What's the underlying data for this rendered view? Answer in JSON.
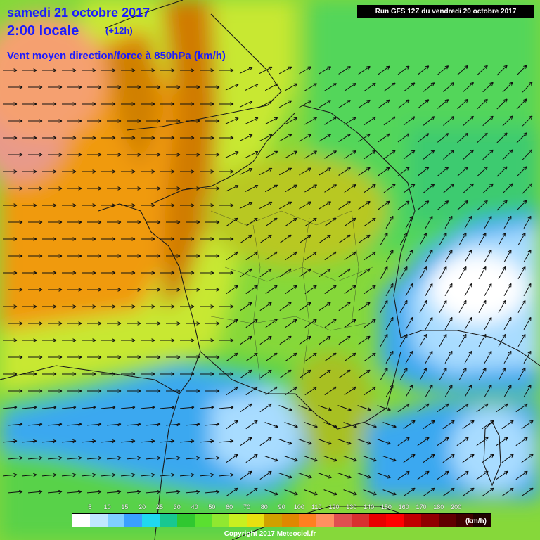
{
  "header": {
    "date": "samedi 21 octobre 2017",
    "time": "2:00 locale",
    "offset": "(+12h)",
    "parameter": "Vent moyen direction/force à 850hPa (km/h)",
    "run": "Run GFS 12Z du vendredi 20 octobre 2017"
  },
  "legend": {
    "unit": "(km/h)",
    "ticks": [
      "5",
      "10",
      "15",
      "20",
      "25",
      "30",
      "40",
      "50",
      "60",
      "70",
      "80",
      "90",
      "100",
      "110",
      "120",
      "130",
      "140",
      "150",
      "160",
      "170",
      "180",
      "200"
    ],
    "colors": [
      "#ffffff",
      "#bfe8ff",
      "#7fcfff",
      "#3aa0ff",
      "#20d8f0",
      "#18c890",
      "#30c830",
      "#5ae030",
      "#90e830",
      "#c8f020",
      "#e8e010",
      "#d0a000",
      "#e08800",
      "#ff8020",
      "#ff9060",
      "#e05050",
      "#d83030",
      "#e80000",
      "#ff0000",
      "#c00000",
      "#900000",
      "#600000",
      "#400000",
      "#200000"
    ]
  },
  "footer": {
    "copyright": "Copyright 2017 Meteociel.fr"
  }
}
